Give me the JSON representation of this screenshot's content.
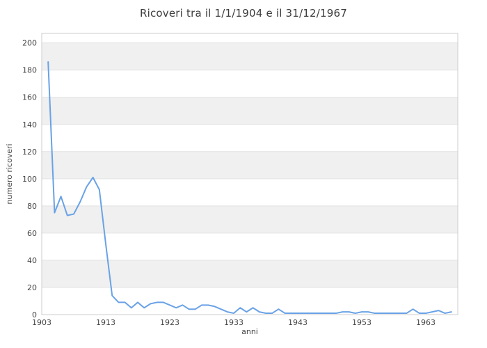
{
  "chart": {
    "title": "Ricoveri tra il 1/1/1904 e il 31/12/1967"
  },
  "chart_data": {
    "type": "line",
    "title": "Ricoveri tra il 1/1/1904 e il 31/12/1967",
    "xlabel": "anni",
    "ylabel": "numero ricoveri",
    "x_start": 1904,
    "x": [
      1904,
      1905,
      1906,
      1907,
      1908,
      1909,
      1910,
      1911,
      1912,
      1913,
      1914,
      1915,
      1916,
      1917,
      1918,
      1919,
      1920,
      1921,
      1922,
      1923,
      1924,
      1925,
      1926,
      1927,
      1928,
      1929,
      1930,
      1931,
      1932,
      1933,
      1934,
      1935,
      1936,
      1937,
      1938,
      1939,
      1940,
      1941,
      1942,
      1943,
      1944,
      1945,
      1946,
      1947,
      1948,
      1949,
      1950,
      1951,
      1952,
      1953,
      1954,
      1955,
      1956,
      1957,
      1958,
      1959,
      1960,
      1961,
      1962,
      1963,
      1964,
      1965,
      1966,
      1967
    ],
    "values": [
      186,
      75,
      87,
      73,
      74,
      83,
      94,
      101,
      92,
      52,
      14,
      9,
      9,
      5,
      9,
      5,
      8,
      9,
      9,
      7,
      5,
      7,
      4,
      4,
      7,
      7,
      6,
      4,
      2,
      1,
      5,
      2,
      5,
      2,
      1,
      1,
      4,
      1,
      1,
      1,
      1,
      1,
      1,
      1,
      1,
      1,
      2,
      2,
      1,
      2,
      2,
      1,
      1,
      1,
      1,
      1,
      1,
      4,
      1,
      1,
      2,
      3,
      1,
      2
    ],
    "x_ticks": [
      1903,
      1913,
      1923,
      1933,
      1943,
      1953,
      1963
    ],
    "y_ticks": [
      0,
      20,
      40,
      60,
      80,
      100,
      120,
      140,
      160,
      180,
      200
    ],
    "xlim": [
      1903,
      1968
    ],
    "ylim": [
      0,
      207
    ],
    "grid": "horizontal-only",
    "legend": "none",
    "colors": {
      "line": "#69a2e6",
      "band_gray": "#f0f0f0",
      "gridline": "#e2e2e2",
      "plot_border": "#cccccc",
      "title_text": "#3c3c3c",
      "tick_text": "#444444",
      "background": "#ffffff"
    },
    "gray_band_starts": [
      20,
      60,
      100,
      140,
      180
    ]
  }
}
